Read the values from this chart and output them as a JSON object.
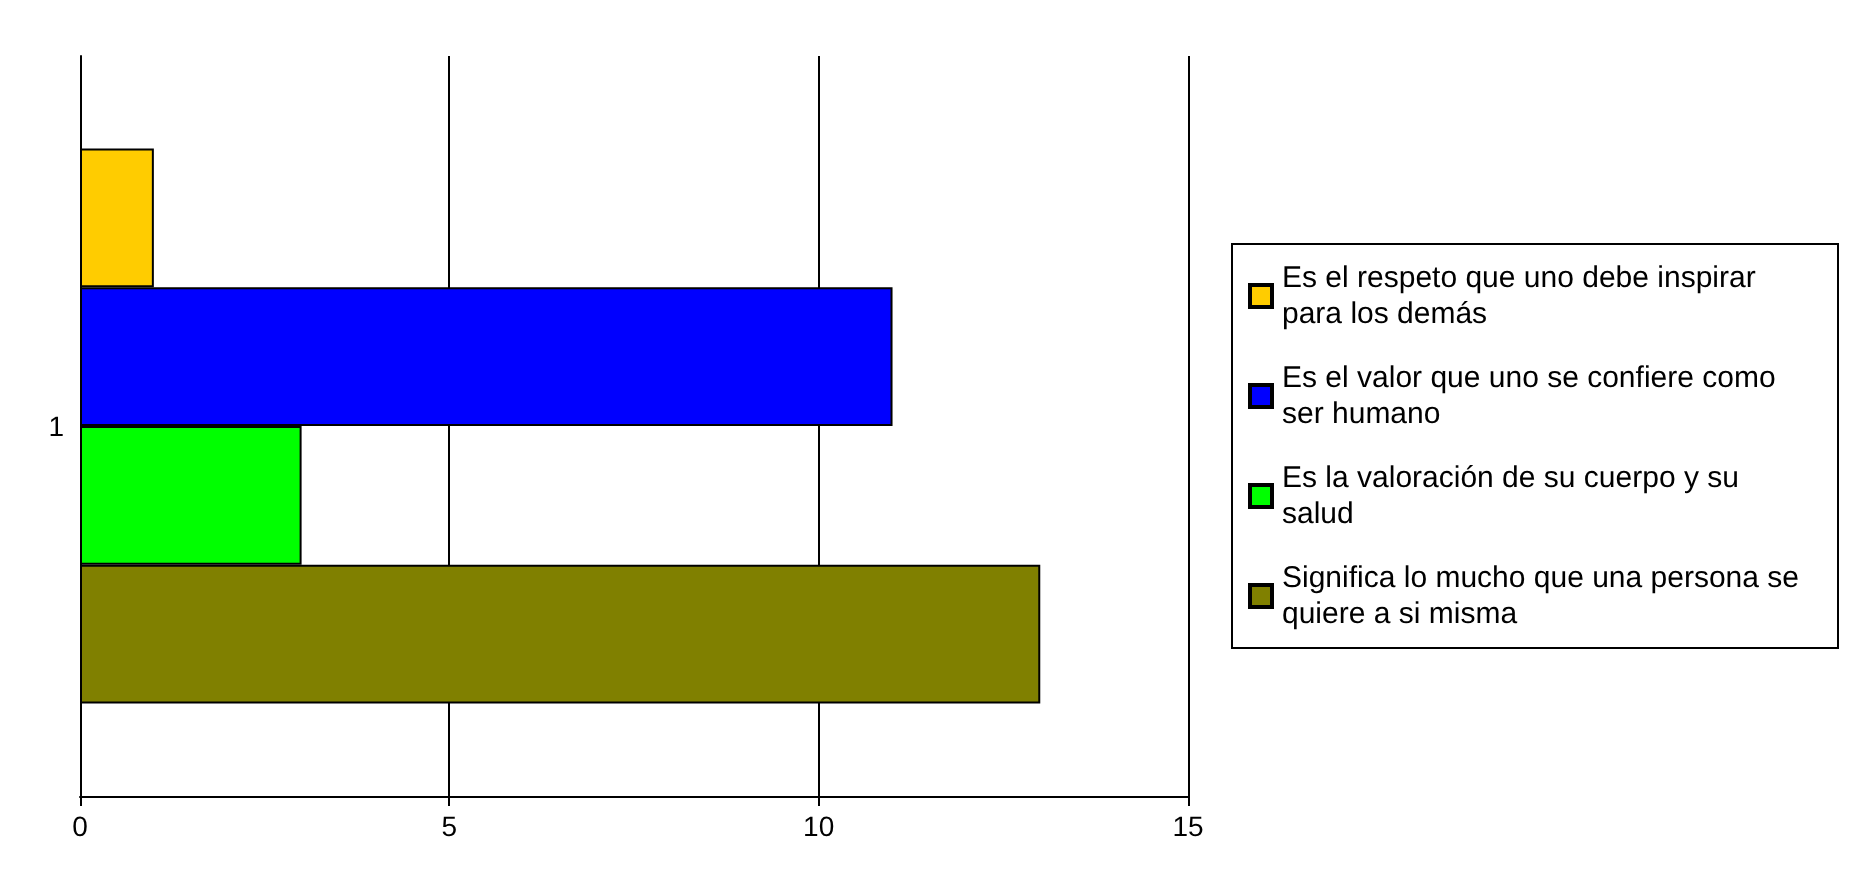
{
  "chart_data": {
    "type": "bar",
    "orientation": "horizontal",
    "categories": [
      "1"
    ],
    "series": [
      {
        "name": "Es el respeto que uno debe inspirar para los demás",
        "color": "#ffcc00",
        "values": [
          1
        ]
      },
      {
        "name": "Es el valor que uno se confiere como ser humano",
        "color": "#0000ff",
        "values": [
          11
        ]
      },
      {
        "name": "Es la valoración de su cuerpo y su salud",
        "color": "#00ff00",
        "values": [
          3
        ]
      },
      {
        "name": "Significa lo mucho que una persona se quiere a si misma",
        "color": "#808000",
        "values": [
          13
        ]
      }
    ],
    "xlim": [
      0,
      15
    ],
    "xticks": [
      0,
      5,
      10,
      15
    ],
    "grid": "x",
    "legend": "right"
  }
}
